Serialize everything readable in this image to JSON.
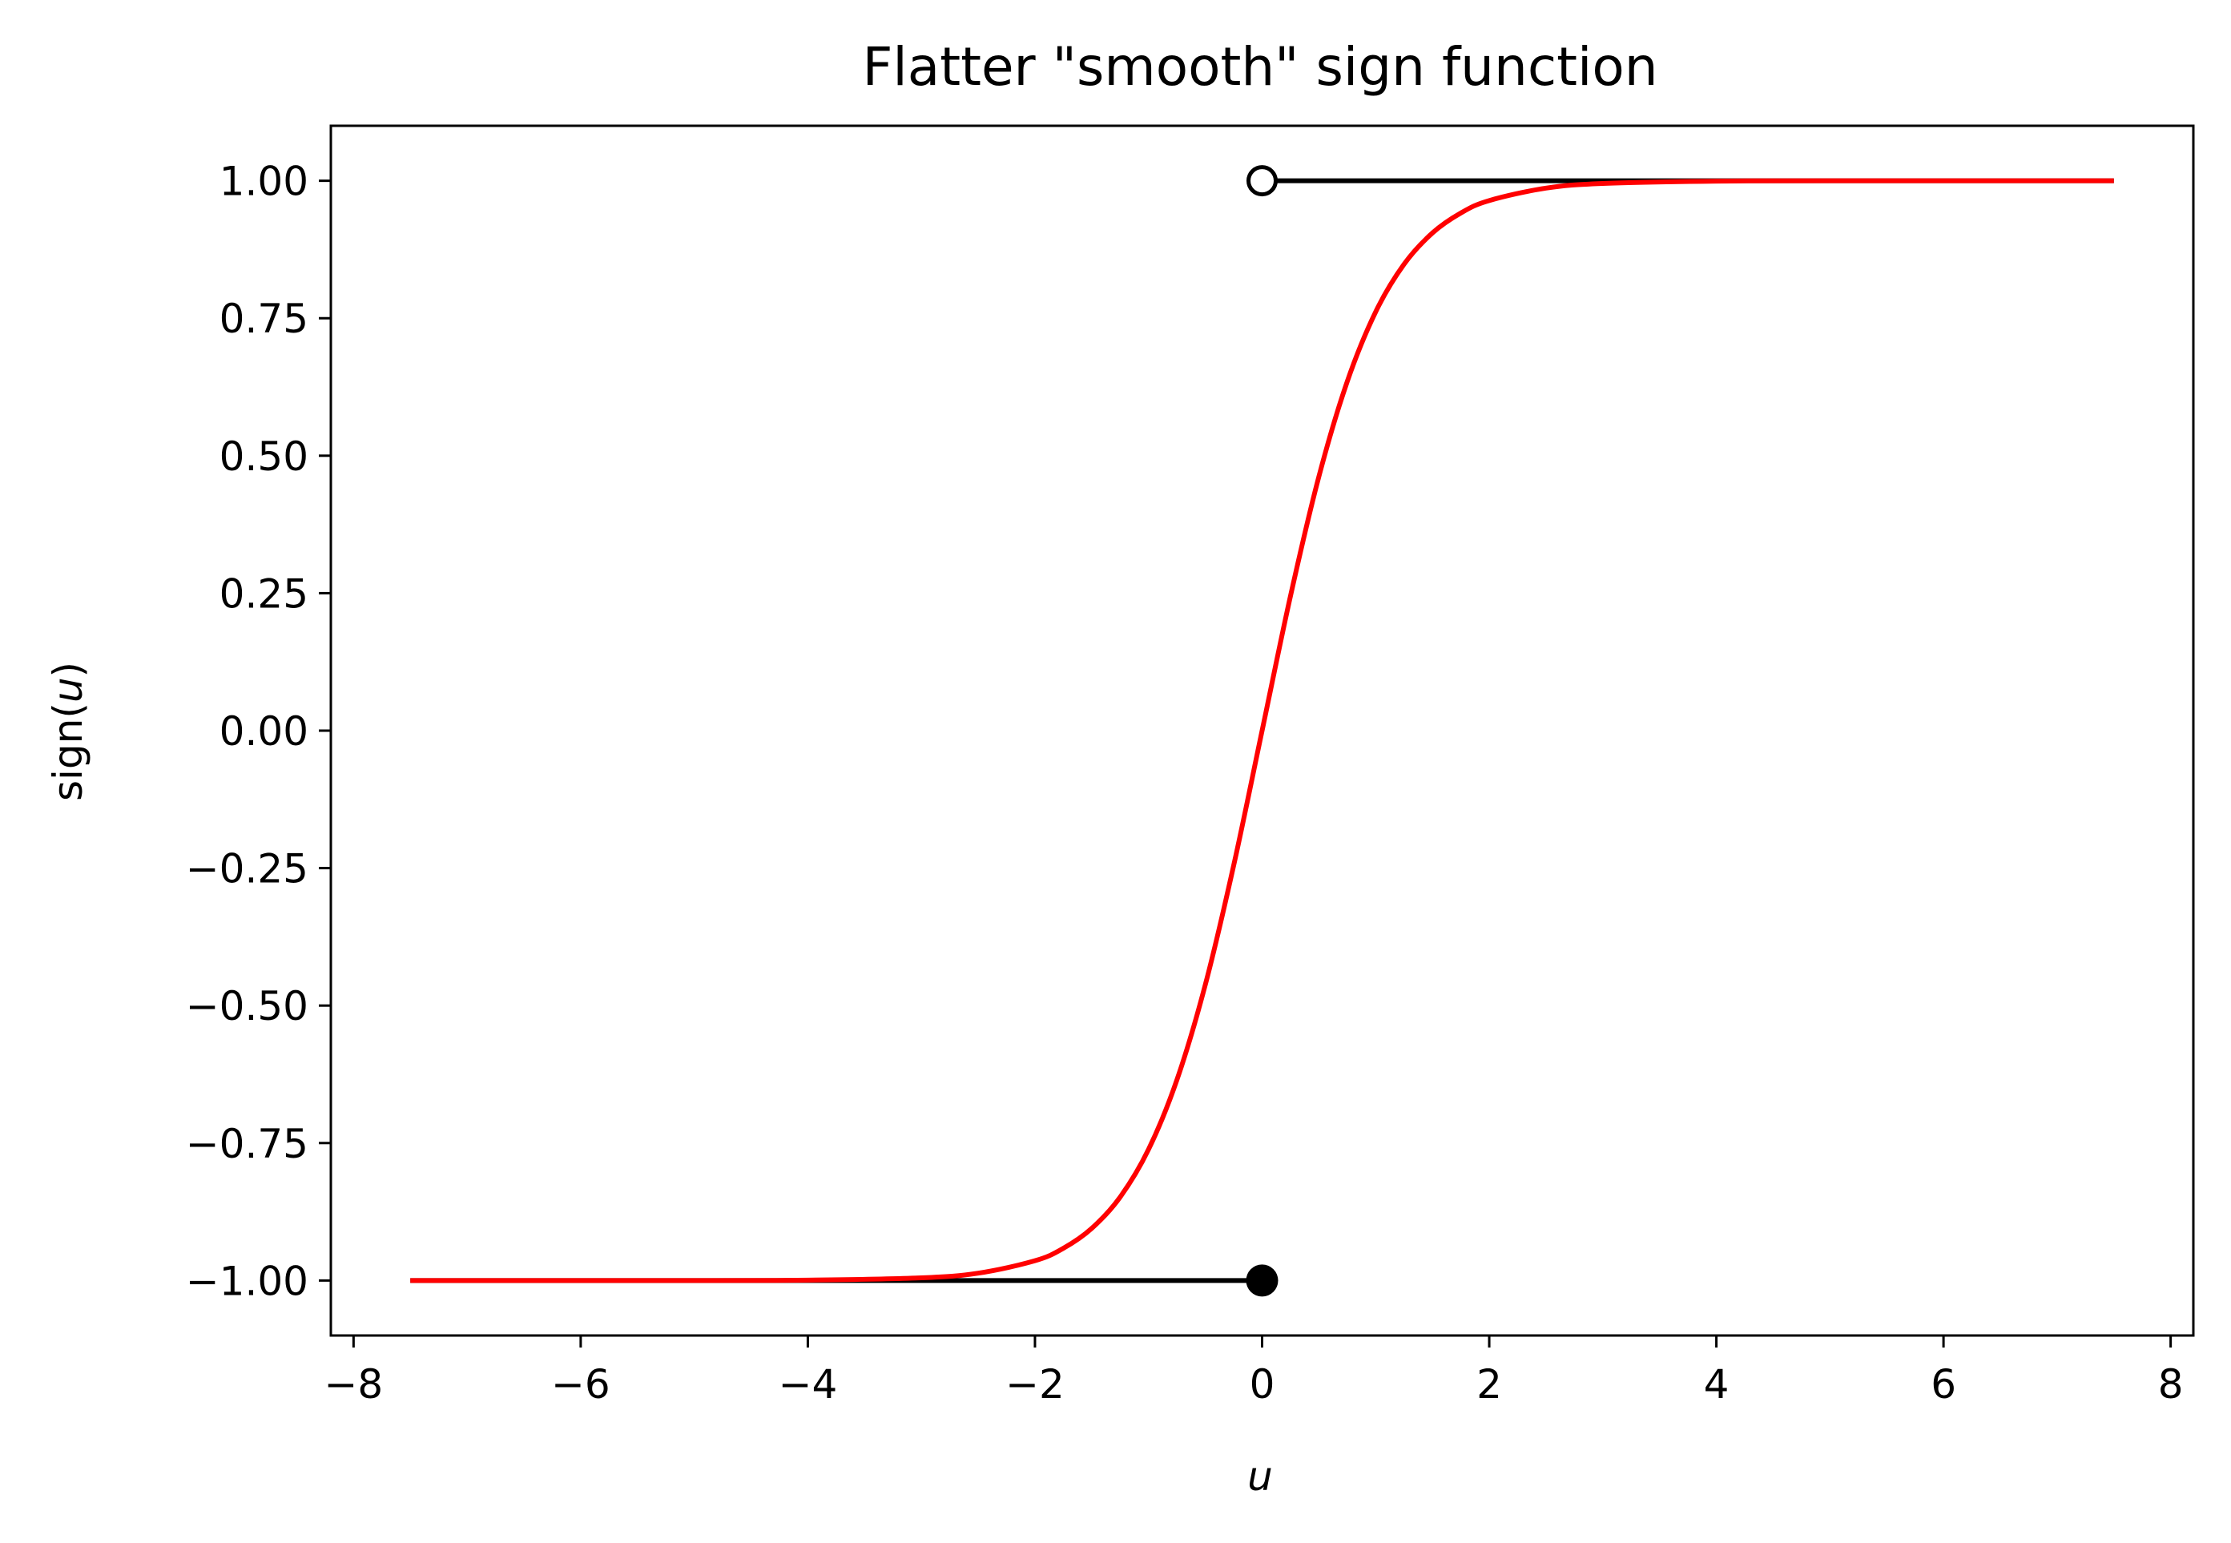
{
  "chart_data": {
    "type": "line",
    "title": "Flatter \"smooth\" sign function",
    "xlabel": "u",
    "ylabel_prefix": "sign(",
    "ylabel_var": "u",
    "ylabel_suffix": ")",
    "xlim": [
      -8.2,
      8.2
    ],
    "ylim": [
      -1.1,
      1.1
    ],
    "x_ticks": [
      {
        "value": -8,
        "label": "−8"
      },
      {
        "value": -6,
        "label": "−6"
      },
      {
        "value": -4,
        "label": "−4"
      },
      {
        "value": -2,
        "label": "−2"
      },
      {
        "value": 0,
        "label": "0"
      },
      {
        "value": 2,
        "label": "2"
      },
      {
        "value": 4,
        "label": "4"
      },
      {
        "value": 6,
        "label": "6"
      },
      {
        "value": 8,
        "label": "8"
      }
    ],
    "y_ticks": [
      {
        "value": 1.0,
        "label": "1.00"
      },
      {
        "value": 0.75,
        "label": "0.75"
      },
      {
        "value": 0.5,
        "label": "0.50"
      },
      {
        "value": 0.25,
        "label": "0.25"
      },
      {
        "value": 0.0,
        "label": "0.00"
      },
      {
        "value": -0.25,
        "label": "−0.25"
      },
      {
        "value": -0.5,
        "label": "−0.50"
      },
      {
        "value": -0.75,
        "label": "−0.75"
      },
      {
        "value": -1.0,
        "label": "−1.00"
      }
    ],
    "grid": false,
    "series": [
      {
        "kind": "step",
        "color": "#000000",
        "segments": [
          {
            "x": [
              -7.5,
              0
            ],
            "y": [
              -1,
              -1
            ]
          },
          {
            "x": [
              0,
              7.5
            ],
            "y": [
              1,
              1
            ]
          }
        ],
        "markers": [
          {
            "x": 0,
            "y": -1,
            "style": "filled"
          },
          {
            "x": 0,
            "y": 1,
            "style": "open"
          }
        ]
      },
      {
        "kind": "smooth",
        "color": "#ff0000",
        "x": [
          -7.5,
          -5,
          -4,
          -3,
          -2.5,
          -2,
          -1.75,
          -1.5,
          -1.25,
          -1,
          -0.75,
          -0.5,
          -0.25,
          0,
          0.25,
          0.5,
          0.75,
          1,
          1.25,
          1.5,
          1.75,
          2,
          2.5,
          3,
          4,
          5,
          7.5
        ],
        "y": [
          -1,
          -1,
          -0.9993,
          -0.9951,
          -0.9866,
          -0.964,
          -0.9414,
          -0.9051,
          -0.8483,
          -0.7616,
          -0.6351,
          -0.4621,
          -0.2449,
          0,
          0.2449,
          0.4621,
          0.6351,
          0.7616,
          0.8483,
          0.9051,
          0.9414,
          0.964,
          0.9866,
          0.9951,
          0.9993,
          1,
          1
        ]
      }
    ]
  }
}
